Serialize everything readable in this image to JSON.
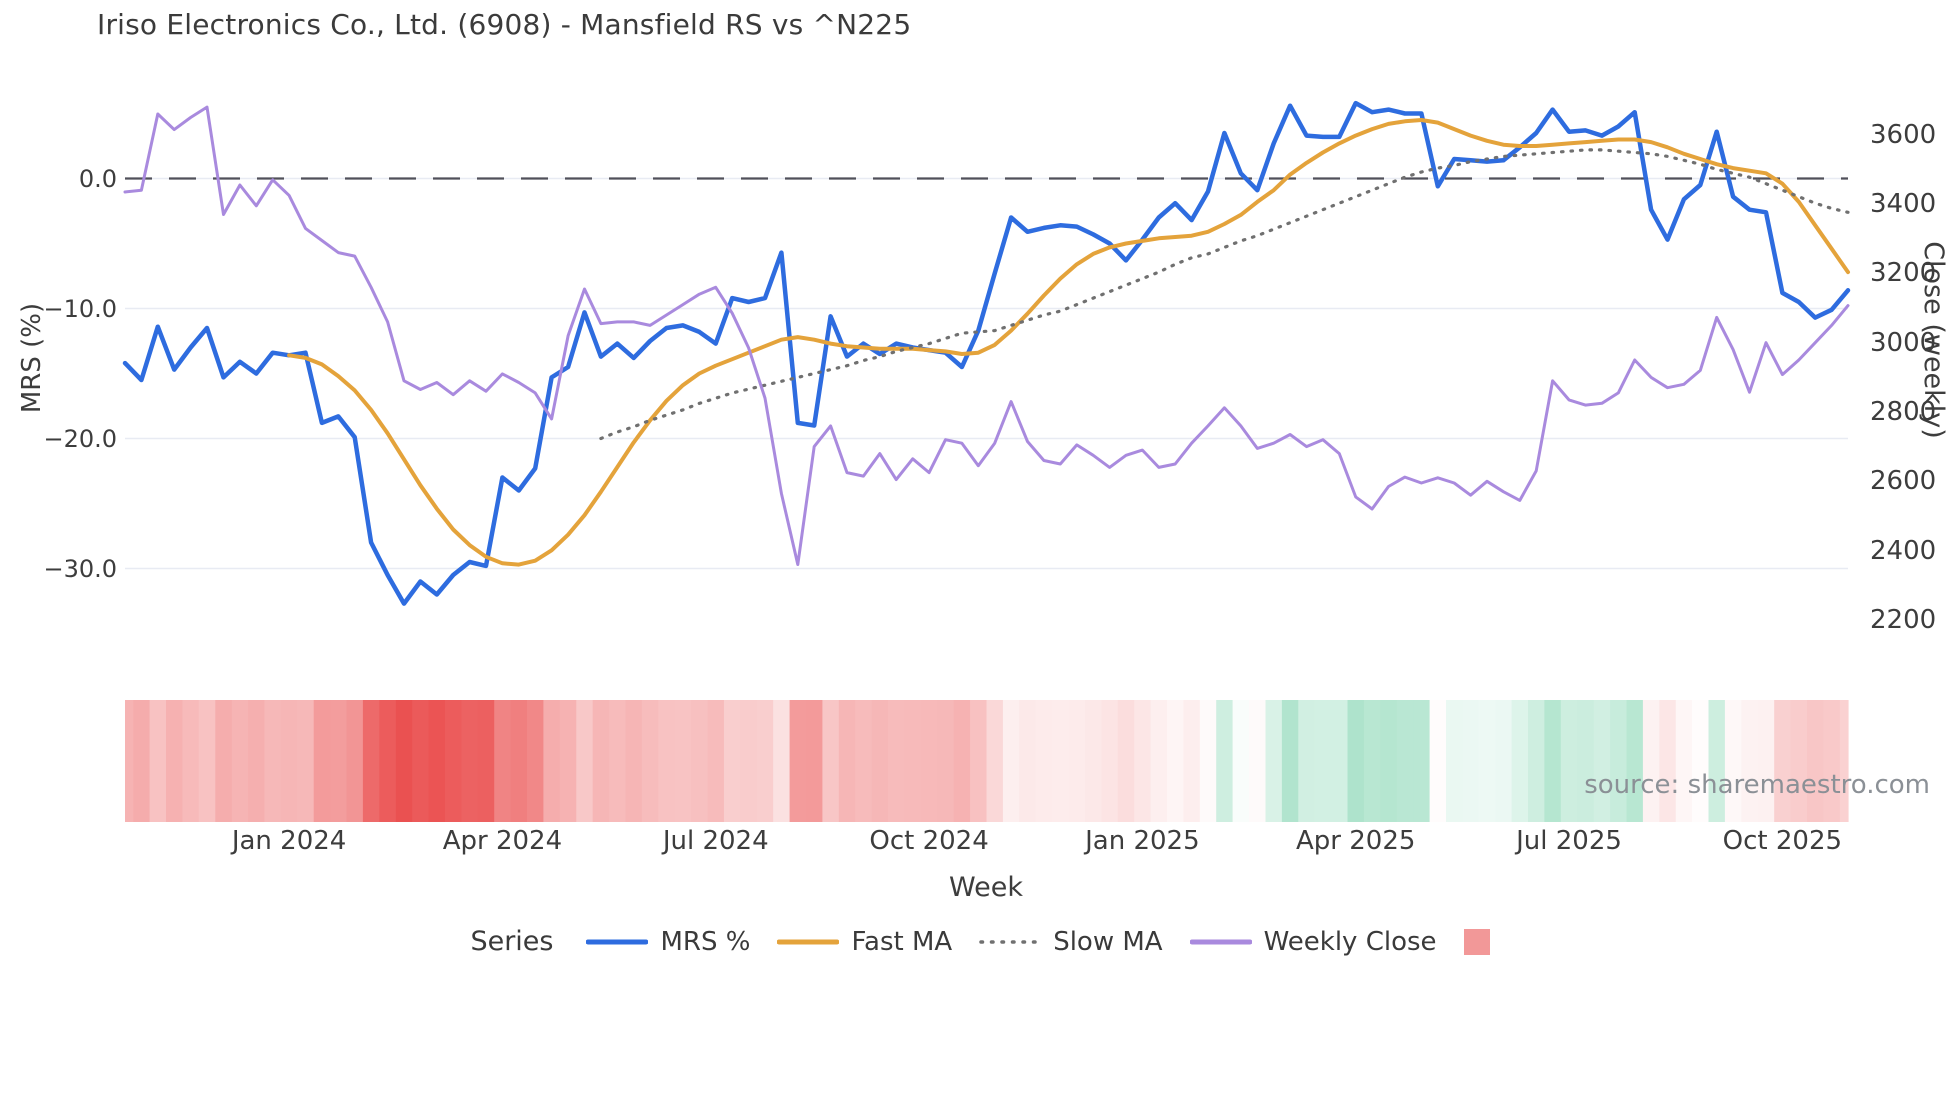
{
  "title": "Iriso Electronics Co., Ltd. (6908) - Mansfield RS vs ^N225",
  "source_note": "source: sharemaestro.com",
  "legend": {
    "title": "Series",
    "items": [
      {
        "label": "MRS %",
        "color": "#2e6cdf",
        "style": "solid"
      },
      {
        "label": "Fast MA",
        "color": "#e4a33b",
        "style": "solid"
      },
      {
        "label": "Slow MA",
        "color": "#707070",
        "style": "dotted"
      },
      {
        "label": "Weekly Close",
        "color": "#a98ade",
        "style": "solid"
      },
      {
        "label": "",
        "color": "#f29898",
        "style": "square"
      }
    ]
  },
  "chart_data": {
    "type": "line",
    "title": "Iriso Electronics Co., Ltd. (6908) - Mansfield RS vs ^N225",
    "xlabel": "Week",
    "x_unit": "weekly points, index 0..105",
    "x_tick_labels": [
      "Jan 2024",
      "Apr 2024",
      "Jul 2024",
      "Oct 2024",
      "Jan 2025",
      "Apr 2025",
      "Jul 2025",
      "Oct 2025"
    ],
    "x_tick_week_indices": [
      10,
      23,
      36,
      49,
      62,
      75,
      88,
      101
    ],
    "y_left": {
      "label": "MRS (%)",
      "tick_labels": [
        "0.0",
        "−10.0",
        "−20.0",
        "−30.0"
      ],
      "tick_values": [
        0,
        -10,
        -20,
        -30
      ],
      "range": [
        -35.5,
        7.2
      ],
      "zero_line": true
    },
    "y_right": {
      "label": "Close (weekly)",
      "tick_values": [
        3600,
        3400,
        3200,
        3000,
        2800,
        2600,
        2400,
        2200
      ],
      "range": [
        2142,
        3743
      ]
    },
    "grid": "horizontal-only",
    "legend_position": "bottom-center",
    "series": [
      {
        "name": "MRS %",
        "axis": "left",
        "color": "#2e6cdf",
        "style": "solid",
        "width": 4.5,
        "values": [
          -14.2,
          -15.5,
          -11.4,
          -14.7,
          -13.0,
          -11.5,
          -15.3,
          -14.1,
          -15.0,
          -13.4,
          -13.6,
          -13.4,
          -18.8,
          -18.3,
          -19.9,
          -28.0,
          -30.5,
          -32.7,
          -31.0,
          -32.0,
          -30.5,
          -29.5,
          -29.8,
          -23.0,
          -24.0,
          -22.3,
          -15.3,
          -14.5,
          -10.3,
          -13.7,
          -12.7,
          -13.8,
          -12.5,
          -11.5,
          -11.3,
          -11.8,
          -12.7,
          -9.2,
          -9.5,
          -9.2,
          -5.7,
          -18.8,
          -19.0,
          -10.6,
          -13.7,
          -12.7,
          -13.5,
          -12.7,
          -13.0,
          -13.2,
          -13.4,
          -14.5,
          -11.7,
          -7.3,
          -3.0,
          -4.1,
          -3.8,
          -3.6,
          -3.7,
          -4.3,
          -5.0,
          -6.3,
          -4.7,
          -3.0,
          -1.9,
          -3.2,
          -1.0,
          3.5,
          0.4,
          -0.9,
          2.7,
          5.6,
          3.3,
          3.2,
          3.2,
          5.8,
          5.1,
          5.3,
          5.0,
          5.0,
          -0.6,
          1.5,
          1.4,
          1.3,
          1.4,
          2.4,
          3.5,
          5.3,
          3.6,
          3.7,
          3.3,
          4.0,
          5.1,
          -2.4,
          -4.7,
          -1.6,
          -0.5,
          3.6,
          -1.4,
          -2.4,
          -2.6,
          -8.8,
          -9.5,
          -10.7,
          -10.1,
          -8.6
        ]
      },
      {
        "name": "Fast MA",
        "axis": "left",
        "color": "#e4a33b",
        "style": "solid",
        "width": 4,
        "values": [
          null,
          null,
          null,
          null,
          null,
          null,
          null,
          null,
          null,
          null,
          -13.6,
          -13.8,
          -14.3,
          -15.2,
          -16.3,
          -17.8,
          -19.6,
          -21.6,
          -23.6,
          -25.4,
          -27.0,
          -28.2,
          -29.1,
          -29.6,
          -29.7,
          -29.4,
          -28.6,
          -27.4,
          -25.9,
          -24.1,
          -22.2,
          -20.3,
          -18.6,
          -17.1,
          -15.9,
          -15.0,
          -14.4,
          -13.9,
          -13.4,
          -12.9,
          -12.4,
          -12.2,
          -12.4,
          -12.7,
          -12.9,
          -13.0,
          -13.1,
          -13.1,
          -13.1,
          -13.2,
          -13.3,
          -13.5,
          -13.4,
          -12.8,
          -11.7,
          -10.4,
          -9.0,
          -7.7,
          -6.6,
          -5.8,
          -5.3,
          -5.0,
          -4.8,
          -4.6,
          -4.5,
          -4.4,
          -4.1,
          -3.5,
          -2.8,
          -1.8,
          -0.9,
          0.3,
          1.2,
          2.0,
          2.7,
          3.3,
          3.8,
          4.2,
          4.4,
          4.5,
          4.3,
          3.8,
          3.3,
          2.9,
          2.6,
          2.5,
          2.5,
          2.6,
          2.7,
          2.8,
          2.9,
          3.0,
          3.0,
          2.8,
          2.4,
          1.9,
          1.5,
          1.1,
          0.8,
          0.6,
          0.4,
          -0.4,
          -1.8,
          -3.6,
          -5.4,
          -7.2
        ]
      },
      {
        "name": "Slow MA",
        "axis": "left",
        "color": "#707070",
        "style": "dotted",
        "width": 3.2,
        "values": [
          null,
          null,
          null,
          null,
          null,
          null,
          null,
          null,
          null,
          null,
          null,
          null,
          null,
          null,
          null,
          null,
          null,
          null,
          null,
          null,
          null,
          null,
          null,
          null,
          null,
          null,
          null,
          null,
          null,
          -20.0,
          -19.5,
          -19.1,
          -18.6,
          -18.2,
          -17.8,
          -17.3,
          -16.9,
          -16.5,
          -16.2,
          -15.9,
          -15.6,
          -15.3,
          -15.0,
          -14.7,
          -14.4,
          -14.0,
          -13.7,
          -13.3,
          -13.0,
          -12.7,
          -12.3,
          -11.9,
          -11.8,
          -11.7,
          -11.3,
          -10.9,
          -10.5,
          -10.2,
          -9.7,
          -9.2,
          -8.7,
          -8.2,
          -7.7,
          -7.2,
          -6.6,
          -6.1,
          -5.8,
          -5.3,
          -4.8,
          -4.4,
          -3.9,
          -3.4,
          -2.9,
          -2.4,
          -1.9,
          -1.4,
          -0.9,
          -0.4,
          0.1,
          0.5,
          0.8,
          1.0,
          1.3,
          1.5,
          1.7,
          1.8,
          1.9,
          2.0,
          2.1,
          2.2,
          2.2,
          2.1,
          2.0,
          1.9,
          1.7,
          1.4,
          1.1,
          0.7,
          0.4,
          0.1,
          -0.4,
          -0.9,
          -1.4,
          -1.9,
          -2.3,
          -2.6
        ]
      },
      {
        "name": "Weekly Close",
        "axis": "right",
        "color": "#a98ade",
        "style": "solid",
        "width": 3,
        "values": [
          3435,
          3440,
          3660,
          3615,
          3650,
          3680,
          3370,
          3455,
          3395,
          3470,
          3425,
          3330,
          3295,
          3260,
          3250,
          3160,
          3060,
          2890,
          2865,
          2885,
          2850,
          2890,
          2860,
          2910,
          2885,
          2855,
          2780,
          3020,
          3155,
          3055,
          3060,
          3060,
          3050,
          3080,
          3110,
          3140,
          3160,
          3085,
          2985,
          2840,
          2565,
          2360,
          2700,
          2760,
          2625,
          2615,
          2680,
          2605,
          2665,
          2625,
          2720,
          2710,
          2645,
          2710,
          2830,
          2715,
          2660,
          2650,
          2705,
          2675,
          2640,
          2675,
          2690,
          2640,
          2650,
          2710,
          2760,
          2812,
          2760,
          2695,
          2710,
          2735,
          2700,
          2720,
          2680,
          2555,
          2520,
          2585,
          2612,
          2595,
          2610,
          2595,
          2560,
          2600,
          2570,
          2545,
          2630,
          2890,
          2835,
          2820,
          2825,
          2855,
          2950,
          2900,
          2870,
          2880,
          2920,
          3073,
          2980,
          2857,
          3000,
          2908,
          2950,
          3000,
          3050,
          3107
        ]
      }
    ],
    "heatmap_strip": {
      "description": "bottom strip, one cell per week, colored from MRS % value",
      "negative_color": "#ea4f4f",
      "positive_color": "#57c695",
      "neutral_color": "#ffffff"
    }
  }
}
